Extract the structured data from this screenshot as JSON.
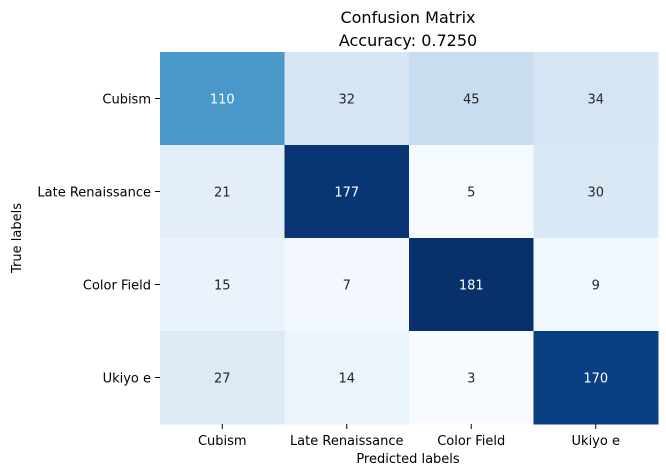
{
  "chart_data": {
    "type": "heatmap",
    "title": "Confusion Matrix",
    "subtitle": "Accuracy: 0.7250",
    "xlabel": "Predicted labels",
    "ylabel": "True labels",
    "x_categories": [
      "Cubism",
      "Late Renaissance",
      "Color Field",
      "Ukiyo e"
    ],
    "y_categories": [
      "Cubism",
      "Late Renaissance",
      "Color Field",
      "Ukiyo e"
    ],
    "values": [
      [
        110,
        32,
        45,
        34
      ],
      [
        21,
        177,
        5,
        30
      ],
      [
        15,
        7,
        181,
        9
      ],
      [
        27,
        14,
        3,
        170
      ]
    ],
    "colormap": "Blues",
    "value_range": [
      3,
      181
    ],
    "colorbar": false
  }
}
